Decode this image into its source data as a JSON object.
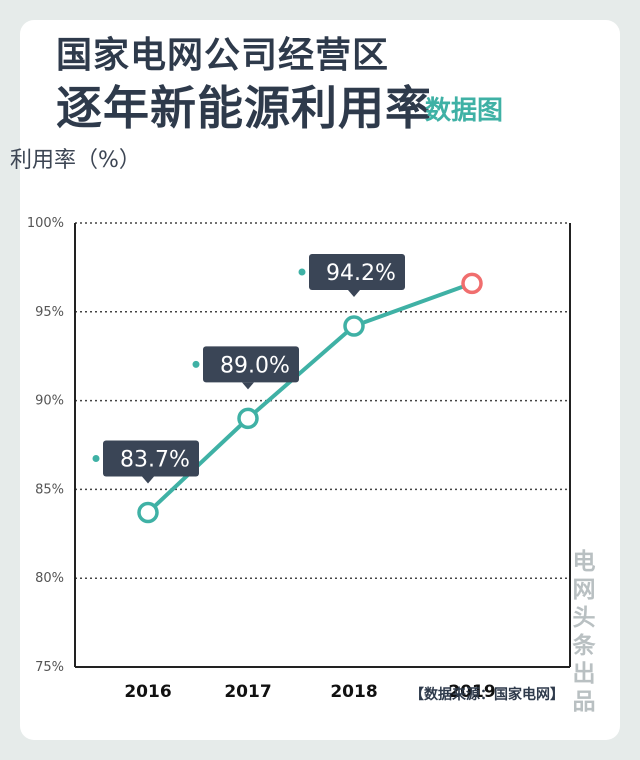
{
  "header": {
    "title_line1": "国家电网公司经营区",
    "title_line2": "逐年新能源利用率",
    "title_tag": "数据图"
  },
  "watermark": "电网头条出品",
  "source": "【数据来源：国家电网】",
  "colors": {
    "line": "#3fb1a5",
    "marker_highlight": "#f06e6e",
    "callout": "#3a4556",
    "title": "#2e3a4b",
    "tag": "#3fb1a5"
  },
  "chart_data": {
    "type": "line",
    "ylabel": "利用率（%）",
    "xlabel": "",
    "categories": [
      "2016",
      "2017",
      "2018",
      "2019"
    ],
    "values": [
      83.7,
      89.0,
      94.2,
      96.6
    ],
    "data_labels": [
      "83.7%",
      "89.0%",
      "94.2%",
      ""
    ],
    "ylim": [
      75,
      100
    ],
    "yticks": [
      75,
      80,
      85,
      90,
      95,
      100
    ],
    "ytick_labels": [
      "75%",
      "80%",
      "85%",
      "90%",
      "95%",
      "100%"
    ],
    "grid": true,
    "legend": "none"
  }
}
